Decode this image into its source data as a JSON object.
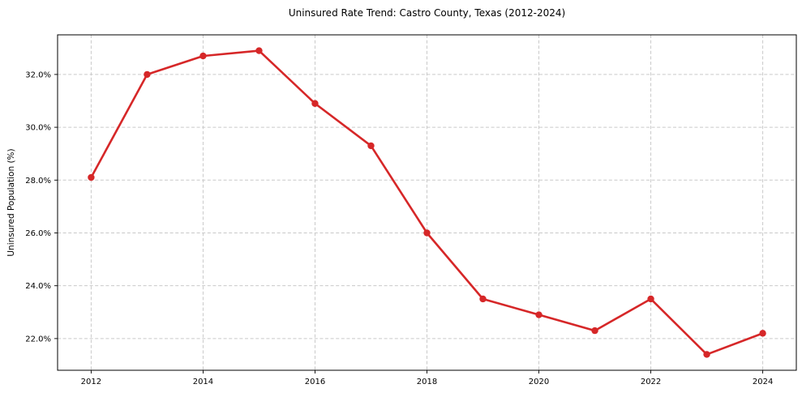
{
  "chart_data": {
    "type": "line",
    "title": "Uninsured Rate Trend: Castro County, Texas (2012-2024)",
    "xlabel": "",
    "ylabel": "Uninsured Population (%)",
    "x": [
      2012,
      2013,
      2014,
      2015,
      2016,
      2017,
      2018,
      2019,
      2020,
      2021,
      2022,
      2023,
      2024
    ],
    "series": [
      {
        "name": "Uninsured Population (%)",
        "values": [
          28.1,
          32.0,
          32.7,
          32.9,
          30.9,
          29.3,
          26.0,
          23.5,
          22.9,
          22.3,
          23.5,
          21.4,
          22.2
        ]
      }
    ],
    "xlim": [
      2011.4,
      2024.6
    ],
    "ylim": [
      20.8,
      33.5
    ],
    "xticks": {
      "values": [
        2012,
        2014,
        2016,
        2018,
        2020,
        2022,
        2024
      ],
      "labels": [
        "2012",
        "2014",
        "2016",
        "2018",
        "2020",
        "2022",
        "2024"
      ]
    },
    "yticks": {
      "values": [
        22,
        24,
        26,
        28,
        30,
        32
      ],
      "labels": [
        "22.0%",
        "24.0%",
        "26.0%",
        "28.0%",
        "30.0%",
        "32.0%"
      ]
    },
    "grid": true,
    "grid_style": "dashed",
    "legend": "none",
    "marker": "circle"
  },
  "style": {
    "line_color": "#d62728",
    "marker_color": "#d62728",
    "grid_color": "#c9c9c9",
    "spine_color": "#000000",
    "tick_color": "#000000",
    "text_color": "#000000",
    "background_color": "#ffffff"
  }
}
